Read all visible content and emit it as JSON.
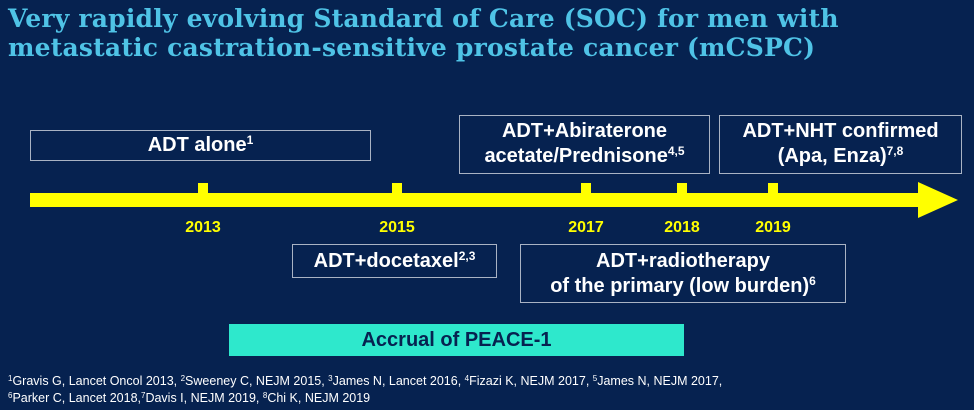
{
  "title": "Very rapidly evolving Standard of Care (SOC) for men with metastatic castration-sensitive prostate cancer (mCSPC)",
  "years": [
    "2013",
    "2015",
    "2017",
    "2018",
    "2019"
  ],
  "boxes": {
    "adt_alone": {
      "text": "ADT alone",
      "sup": "1"
    },
    "adt_docetaxel": {
      "text": "ADT+docetaxel",
      "sup": "2,3"
    },
    "adt_abiraterone": {
      "line1": "ADT+Abiraterone",
      "line2": "acetate/Prednisone",
      "sup": "4,5"
    },
    "adt_nht": {
      "line1": "ADT+NHT confirmed",
      "line2": "(Apa, Enza)",
      "sup": "7,8"
    },
    "adt_radiotherapy": {
      "line1": "ADT+radiotherapy",
      "line2": "of the primary (low burden)",
      "sup": "6"
    }
  },
  "peace_label": "Accrual of PEACE-1",
  "references": [
    {
      "n": "1",
      "text": "Gravis G, Lancet Oncol 2013, "
    },
    {
      "n": "2",
      "text": "Sweeney C, NEJM 2015, "
    },
    {
      "n": "3",
      "text": "James N, Lancet 2016, "
    },
    {
      "n": "4",
      "text": "Fizazi K, NEJM 2017, "
    },
    {
      "n": "5",
      "text": "James N, NEJM 2017,"
    },
    {
      "n": "6",
      "text": "Parker C, Lancet 2018,"
    },
    {
      "n": "7",
      "text": "Davis I, NEJM 2019, "
    },
    {
      "n": "8",
      "text": "Chi K, NEJM 2019"
    }
  ],
  "colors": {
    "background": "#062250",
    "title": "#4fc3e6",
    "timeline": "#ffff00",
    "peace_bar": "#2ee8cc",
    "box_border": "#a9b3c4"
  }
}
